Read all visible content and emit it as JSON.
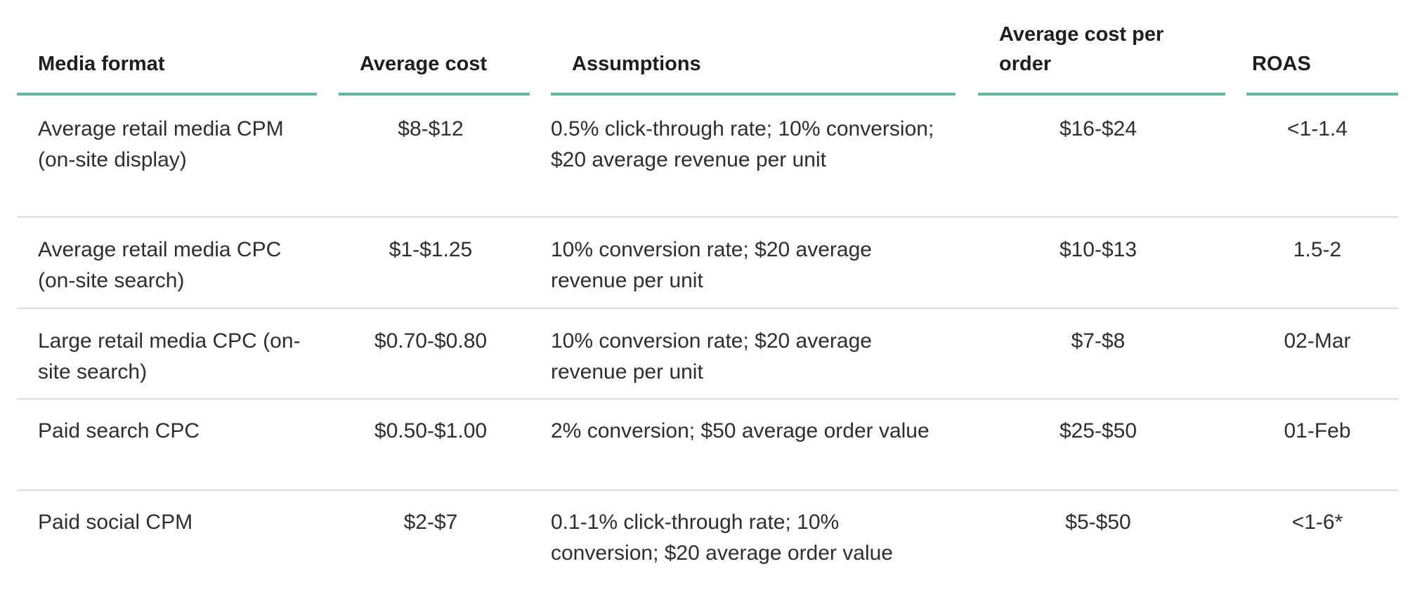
{
  "table": {
    "headers": [
      "Media format",
      "Average cost",
      "Assumptions",
      "Average cost per order",
      "ROAS"
    ],
    "rows": [
      {
        "media_format": "Average retail media CPM (on-site display)",
        "average_cost": "$8-$12",
        "assumptions": "0.5% click-through rate; 10% conversion; $20 average revenue per unit",
        "average_cost_per_order": "$16-$24",
        "roas": "<1-1.4"
      },
      {
        "media_format": "Average retail media CPC (on-site search)",
        "average_cost": "$1-$1.25",
        "assumptions": "10% conversion rate; $20 average revenue per unit",
        "average_cost_per_order": "$10-$13",
        "roas": "1.5-2"
      },
      {
        "media_format": "Large retail media CPC (on-site search)",
        "average_cost": "$0.70-$0.80",
        "assumptions": "10% conversion rate; $20 average revenue per unit",
        "average_cost_per_order": "$7-$8",
        "roas": "02-Mar"
      },
      {
        "media_format": "Paid search CPC",
        "average_cost": "$0.50-$1.00",
        "assumptions": "2% conversion; $50 average order value",
        "average_cost_per_order": "$25-$50",
        "roas": "01-Feb"
      },
      {
        "media_format": "Paid social CPM",
        "average_cost": "$2-$7",
        "assumptions": "0.1-1% click-through rate; 10% conversion; $20 average order value",
        "average_cost_per_order": "$5-$50",
        "roas": "<1-6*"
      }
    ]
  },
  "colors": {
    "header_rule": "#5fb8a4",
    "row_divider": "#dcdcdc",
    "text": "#2e2e2e"
  }
}
